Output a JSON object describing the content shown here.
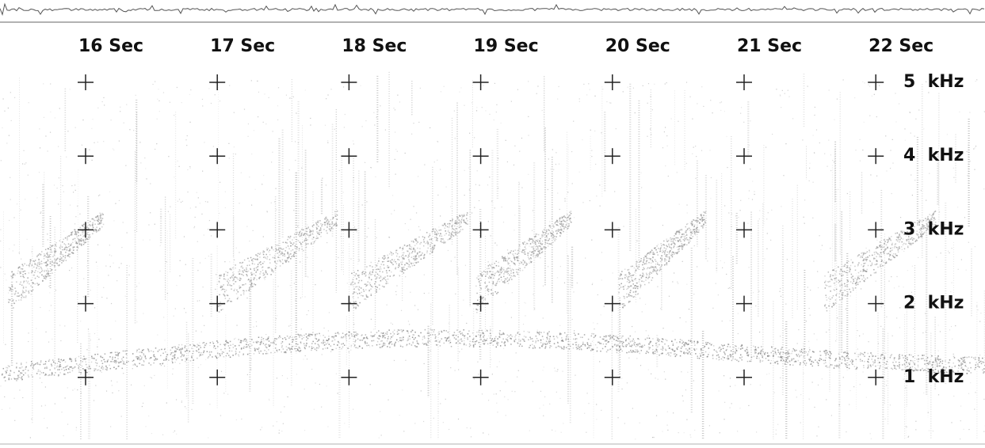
{
  "time_labels": [
    "16 Sec",
    "17 Sec",
    "18 Sec",
    "19 Sec",
    "20 Sec",
    "21 Sec",
    "22 Sec"
  ],
  "frequency_labels": [
    "5  kHz",
    "4  kHz",
    "3  kHz",
    "2  kHz",
    "1  kHz"
  ]
}
